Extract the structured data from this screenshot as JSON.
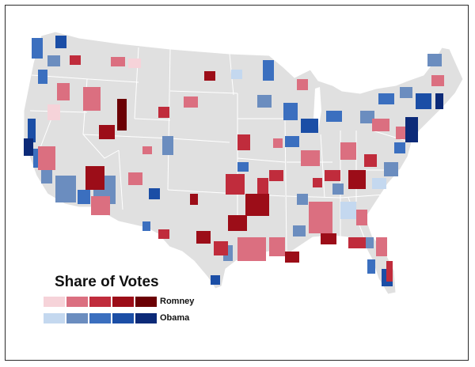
{
  "legend": {
    "title": "Share of Votes",
    "romney_label": "Romney",
    "obama_label": "Obama",
    "romney_colors": [
      "#f6d3d9",
      "#db6f80",
      "#c02c3c",
      "#9c0d18",
      "#6b0004"
    ],
    "obama_colors": [
      "#c4d8ef",
      "#6b8dbf",
      "#3b6fbf",
      "#1b4ea6",
      "#0c2a78"
    ]
  },
  "map": {
    "land_color": "#e0e0e0",
    "border_color": "#ffffff",
    "frame_color": "#2b2b2b"
  }
}
